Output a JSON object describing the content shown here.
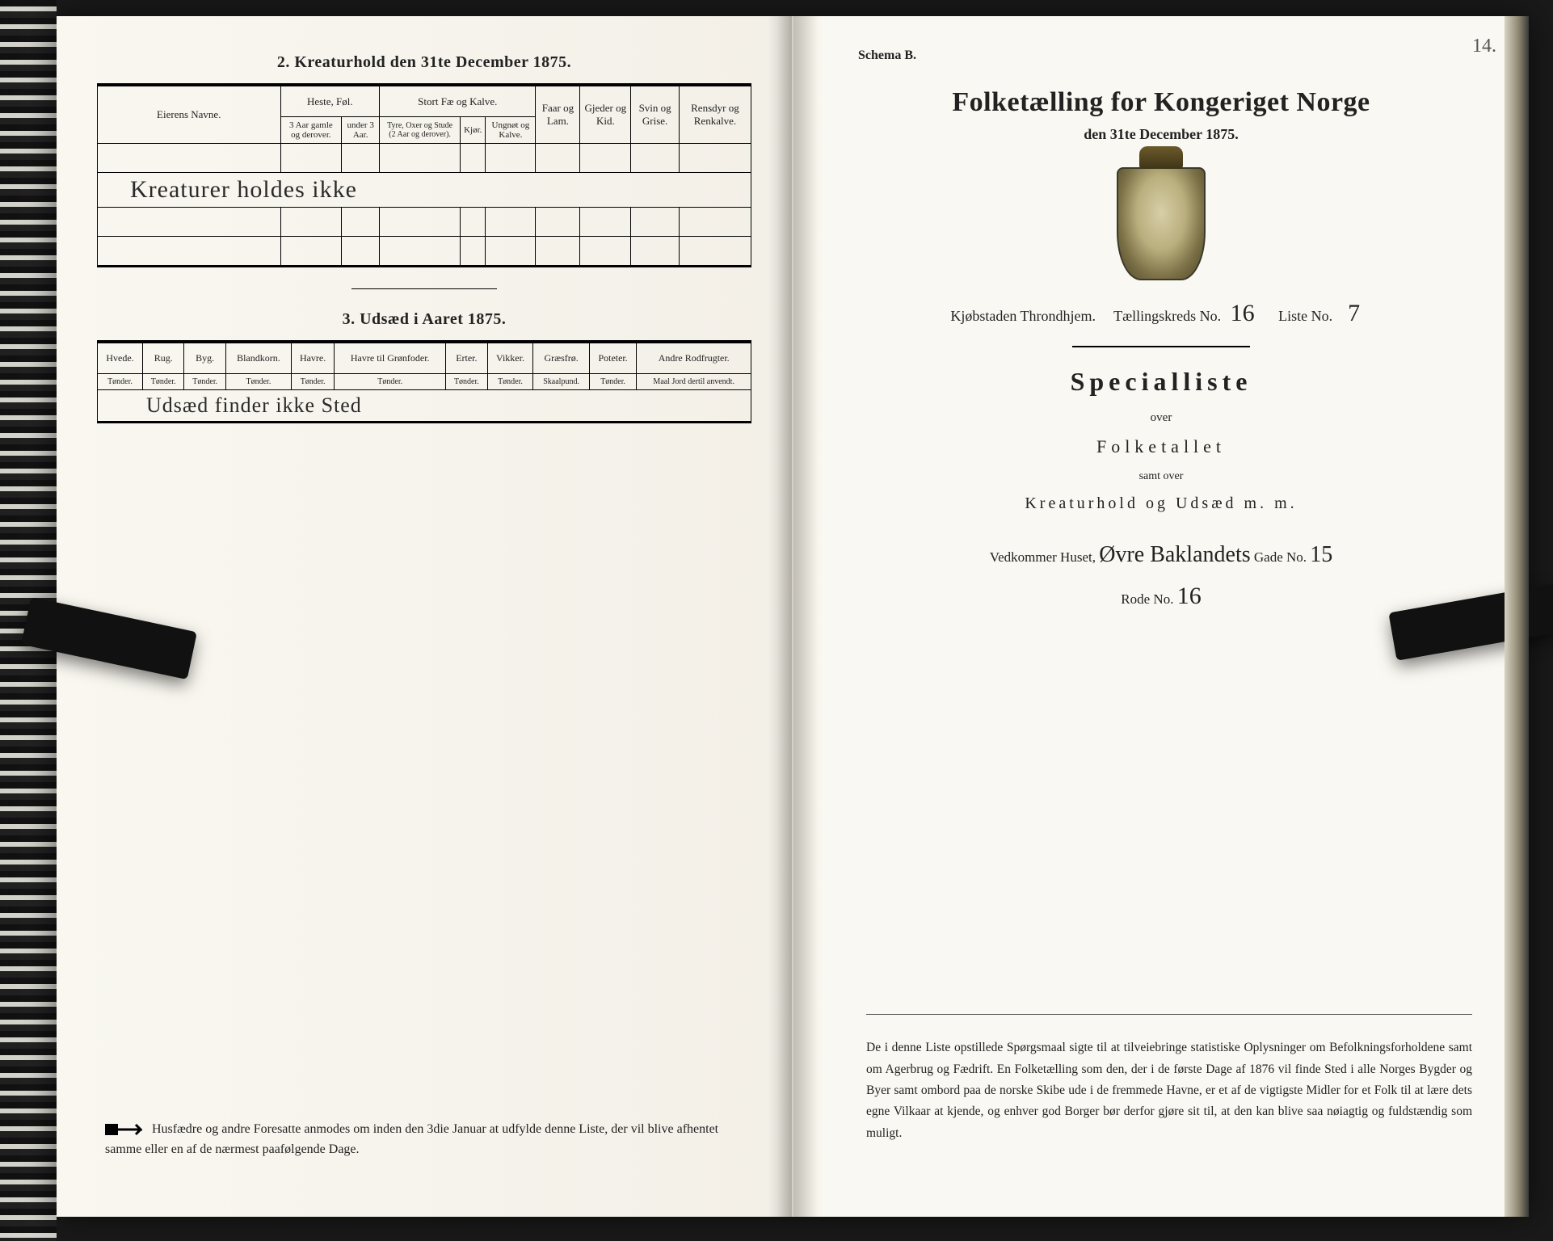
{
  "left": {
    "section2_title": "2.  Kreaturhold den 31te December 1875.",
    "table2": {
      "owner_header": "Eierens Navne.",
      "group_heste": "Heste, Føl.",
      "group_stort": "Stort Fæ og Kalve.",
      "faar": "Faar og Lam.",
      "gjeder": "Gjeder og Kid.",
      "svin": "Svin og Grise.",
      "rensdyr": "Rensdyr og Renkalve.",
      "heste_a": "3 Aar gamle og derover.",
      "heste_b": "under 3 Aar.",
      "stort_a": "Tyre, Oxer og Stude (2 Aar og derover).",
      "stort_b": "Kjør.",
      "stort_c": "Ungnøt og Kalve.",
      "handwritten_row": "Kreaturer holdes ikke"
    },
    "section3_title": "3.  Udsæd i Aaret 1875.",
    "table3": {
      "cols": [
        "Hvede.",
        "Rug.",
        "Byg.",
        "Blandkorn.",
        "Havre.",
        "Havre til Grønfoder.",
        "Erter.",
        "Vikker.",
        "Græsfrø.",
        "Poteter.",
        "Andre Rodfrugter."
      ],
      "units": [
        "Tønder.",
        "Tønder.",
        "Tønder.",
        "Tønder.",
        "Tønder.",
        "Tønder.",
        "Tønder.",
        "Tønder.",
        "Skaalpund.",
        "Tønder.",
        "Maal Jord dertil anvendt."
      ],
      "handwritten_row": "Udsæd finder ikke Sted"
    },
    "footer": "Husfædre og andre Foresatte anmodes om inden den 3die Januar at udfylde denne Liste, der vil blive afhentet samme eller en af de nærmest paafølgende Dage."
  },
  "right": {
    "schema": "Schema B.",
    "page_num": "14.",
    "title": "Folketælling for Kongeriget Norge",
    "date": "den 31te December 1875.",
    "city_label": "Kjøbstaden Throndhjem.",
    "kreds_label": "Tællingskreds No.",
    "kreds_no": "16",
    "liste_label": "Liste No.",
    "liste_no": "7",
    "specialliste": "Specialliste",
    "over": "over",
    "folketallet": "Folketallet",
    "samt": "samt over",
    "kreatur": "Kreaturhold og Udsæd m. m.",
    "vedkommer_label": "Vedkommer Huset,",
    "street_hw": "Øvre Baklandets",
    "gade_label": "Gade No.",
    "gade_no": "15",
    "rode_label": "Rode No.",
    "rode_no": "16",
    "paragraph": "De i denne Liste opstillede Spørgsmaal sigte til at tilveiebringe statistiske Oplysninger om Befolkningsforholdene samt om Agerbrug og Fædrift.  En Folketælling som den, der i de første Dage af 1876 vil finde Sted i alle Norges Bygder og Byer samt ombord paa de norske Skibe ude i de fremmede Havne, er et af de vigtigste Midler for et Folk til at lære dets egne Vilkaar at kjende, og enhver god Borger bør derfor gjøre sit til, at den kan blive saa nøiagtig og fuldstændig som muligt."
  }
}
